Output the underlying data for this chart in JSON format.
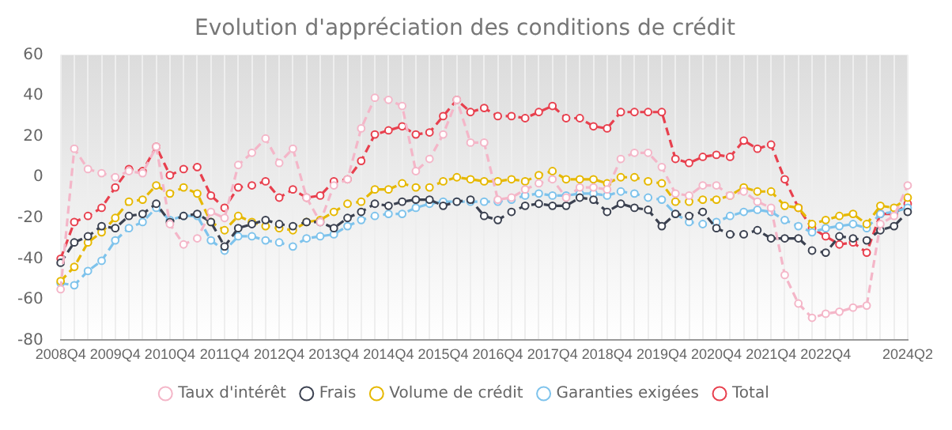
{
  "chart_data": {
    "type": "line",
    "title": "Evolution d'appréciation des conditions de crédit",
    "categories": [
      "2008Q4",
      null,
      null,
      null,
      "2009Q4",
      null,
      null,
      null,
      "2010Q4",
      null,
      null,
      null,
      "2011Q4",
      null,
      null,
      null,
      "2012Q4",
      null,
      null,
      null,
      "2013Q4",
      null,
      null,
      null,
      "2014Q4",
      null,
      null,
      null,
      "2015Q4",
      null,
      null,
      null,
      "2016Q4",
      null,
      null,
      null,
      "2017Q4",
      null,
      null,
      null,
      "2018Q4",
      null,
      null,
      null,
      "2019Q4",
      null,
      null,
      null,
      "2020Q4",
      null,
      null,
      null,
      "2021Q4",
      null,
      null,
      null,
      "2022Q4",
      null,
      null,
      null,
      null,
      null,
      "2024Q2"
    ],
    "series": [
      {
        "name": "Taux d'intérêt",
        "color": "#f4b6c8",
        "values": [
          -55,
          14,
          4,
          2,
          0,
          3,
          2,
          15,
          -23,
          -33,
          -30,
          -17,
          -20,
          6,
          12,
          19,
          7,
          14,
          -10,
          -22,
          -4,
          -1,
          24,
          39,
          38,
          35,
          3,
          9,
          21,
          38,
          17,
          17,
          -11,
          -10,
          -6,
          -3,
          -1,
          -10,
          -5,
          -5,
          -6,
          9,
          12,
          12,
          5,
          -8,
          -9,
          -4,
          -4,
          -9,
          -7,
          -12,
          -15,
          -48,
          -62,
          -69,
          -67,
          -66,
          -64,
          -63,
          -23,
          -19,
          -4
        ]
      },
      {
        "name": "Frais",
        "color": "#3b4150",
        "values": [
          -42,
          -32,
          -29,
          -24,
          -25,
          -19,
          -18,
          -13,
          -22,
          -19,
          -18,
          -22,
          -34,
          -25,
          -23,
          -21,
          -23,
          -24,
          -22,
          -22,
          -25,
          -20,
          -17,
          -13,
          -14,
          -12,
          -11,
          -11,
          -14,
          -12,
          -11,
          -19,
          -21,
          -17,
          -14,
          -13,
          -14,
          -14,
          -10,
          -11,
          -17,
          -13,
          -15,
          -16,
          -24,
          -18,
          -19,
          -17,
          -25,
          -28,
          -28,
          -26,
          -30,
          -30,
          -30,
          -36,
          -37,
          -29,
          -30,
          -31,
          -26,
          -24,
          -17
        ]
      },
      {
        "name": "Volume de crédit",
        "color": "#e6b800",
        "values": [
          -51,
          -44,
          -32,
          -27,
          -20,
          -12,
          -11,
          -4,
          -8,
          -5,
          -8,
          -22,
          -26,
          -19,
          -22,
          -24,
          -25,
          -26,
          -22,
          -21,
          -17,
          -13,
          -12,
          -6,
          -6,
          -3,
          -5,
          -5,
          -2,
          0,
          -1,
          -2,
          -2,
          -1,
          -2,
          1,
          3,
          -1,
          -1,
          -1,
          -3,
          0,
          0,
          -2,
          -3,
          -12,
          -12,
          -11,
          -11,
          -9,
          -5,
          -7,
          -7,
          -14,
          -15,
          -23,
          -21,
          -19,
          -18,
          -23,
          -14,
          -15,
          -10
        ]
      },
      {
        "name": "Garanties exigées",
        "color": "#7ec3ec",
        "values": [
          -52,
          -53,
          -46,
          -41,
          -31,
          -25,
          -22,
          -15,
          -21,
          -19,
          -19,
          -31,
          -36,
          -29,
          -29,
          -31,
          -32,
          -34,
          -30,
          -29,
          -28,
          -24,
          -21,
          -19,
          -18,
          -18,
          -15,
          -13,
          -12,
          -12,
          -12,
          -12,
          -12,
          -11,
          -9,
          -8,
          -9,
          -9,
          -8,
          -8,
          -9,
          -7,
          -8,
          -10,
          -11,
          -18,
          -22,
          -23,
          -22,
          -19,
          -17,
          -16,
          -17,
          -21,
          -24,
          -27,
          -25,
          -24,
          -23,
          -25,
          -18,
          -17,
          -15
        ]
      },
      {
        "name": "Total",
        "color": "#e8404e",
        "values": [
          -40,
          -22,
          -19,
          -15,
          -5,
          4,
          3,
          15,
          1,
          4,
          5,
          -9,
          -15,
          -5,
          -4,
          -2,
          -10,
          -6,
          -10,
          -9,
          -2,
          -1,
          8,
          21,
          23,
          25,
          21,
          22,
          30,
          38,
          32,
          34,
          30,
          30,
          29,
          32,
          35,
          29,
          29,
          25,
          24,
          32,
          32,
          32,
          32,
          9,
          7,
          10,
          11,
          10,
          18,
          14,
          16,
          -1,
          -15,
          -25,
          -29,
          -33,
          -32,
          -37,
          -18,
          -18,
          -13
        ]
      }
    ],
    "ylim": [
      -80,
      60
    ],
    "yticks": [
      -80,
      -60,
      -40,
      -20,
      0,
      20,
      40,
      60
    ],
    "grid": "x",
    "legend": "bottom",
    "marker": "circle",
    "line_style": "dashed"
  }
}
